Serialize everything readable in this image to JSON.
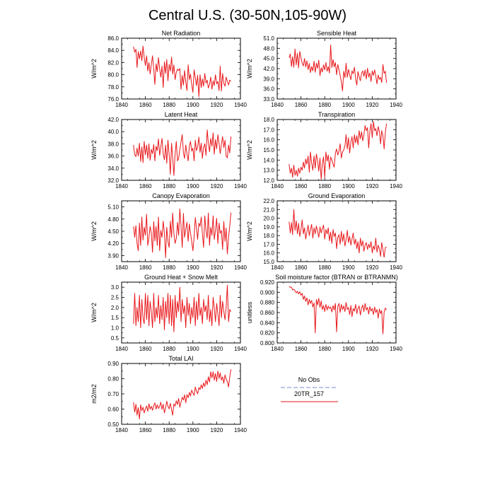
{
  "title": "Central U.S. (30-50N,105-90W)",
  "colors": {
    "model": "#e8171b",
    "obs": "#a8b1e3"
  },
  "legend": [
    {
      "label": "No Obs",
      "color": "#a8b1e3",
      "dashed": true
    },
    {
      "label": "20TR_157",
      "color": "#e8171b",
      "dashed": false
    }
  ],
  "chart_data": [
    {
      "type": "line",
      "title": "Net Radiation",
      "ylabel": "W/m^2",
      "xlim": [
        1840,
        1940
      ],
      "xticks": [
        "1840",
        "1860",
        "1880",
        "1900",
        "1920",
        "1940"
      ],
      "ylim": [
        76.0,
        86.0
      ],
      "yticks": [
        "76.0",
        "78.0",
        "80.0",
        "82.0",
        "84.0",
        "86.0"
      ],
      "x0": 1850,
      "values": [
        84.6,
        83.7,
        84.2,
        81.2,
        83.8,
        82.6,
        83.9,
        82.3,
        84.7,
        82.9,
        81.5,
        83.1,
        80.6,
        82.0,
        80.1,
        81.7,
        83.1,
        80.9,
        78.4,
        81.8,
        80.5,
        82.8,
        80.9,
        79.6,
        81.4,
        77.9,
        82.1,
        80.2,
        82.5,
        79.0,
        81.7,
        80.6,
        82.9,
        80.1,
        81.6,
        79.2,
        80.4,
        80.9,
        80.7,
        81.0,
        77.6,
        79.9,
        78.3,
        80.7,
        78.8,
        77.4,
        81.6,
        79.2,
        80.1,
        78.4,
        77.1,
        80.8,
        79.5,
        78.2,
        79.9,
        76.4,
        80.0,
        77.9,
        79.3,
        78.1,
        80.2,
        78.6,
        79.1,
        77.8,
        78.4,
        79.6,
        77.6,
        79.0,
        78.2,
        80.0,
        78.5,
        78.9,
        77.4,
        81.4,
        77.3,
        80.2,
        78.6,
        78.1,
        79.6,
        78.9,
        78.3,
        79.1,
        78.9
      ]
    },
    {
      "type": "line",
      "title": "Sensible Heat",
      "ylabel": "W/m^2",
      "xlim": [
        1840,
        1940
      ],
      "xticks": [
        "1840",
        "1860",
        "1880",
        "1900",
        "1920",
        "1940"
      ],
      "ylim": [
        33.0,
        51.0
      ],
      "yticks": [
        "33.0",
        "36.0",
        "39.0",
        "42.0",
        "45.0",
        "48.0",
        "51.0"
      ],
      "x0": 1850,
      "values": [
        45.2,
        46.3,
        42.6,
        45.5,
        42.4,
        47.8,
        43.1,
        46.5,
        42.2,
        47.1,
        45.2,
        43.6,
        42.8,
        45.0,
        42.5,
        44.3,
        41.7,
        43.5,
        40.8,
        42.6,
        41.3,
        44.2,
        40.9,
        43.6,
        42.1,
        44.5,
        39.9,
        42.2,
        41.0,
        43.1,
        41.6,
        43.8,
        41.2,
        42.6,
        40.7,
        49.0,
        42.3,
        44.7,
        42.5,
        43.8,
        40.2,
        43.2,
        41.6,
        40.0,
        38.1,
        35.4,
        41.2,
        39.3,
        43.6,
        39.4,
        41.8,
        40.1,
        38.7,
        41.3,
        40.5,
        42.4,
        39.0,
        37.1,
        41.1,
        39.6,
        38.4,
        40.6,
        41.3,
        39.7,
        41.6,
        38.9,
        42.1,
        39.5,
        40.7,
        38.2,
        41.3,
        40.0,
        41.6,
        39.8,
        37.5,
        40.1,
        38.8,
        39.4,
        37.9,
        43.2,
        40.6,
        41.2,
        37.8
      ]
    },
    {
      "type": "line",
      "title": "Latent Heat",
      "ylabel": "W/m^2",
      "xlim": [
        1840,
        1940
      ],
      "xticks": [
        "1840",
        "1860",
        "1880",
        "1900",
        "1920",
        "1940"
      ],
      "ylim": [
        32.0,
        42.0
      ],
      "yticks": [
        "32.0",
        "34.0",
        "36.0",
        "38.0",
        "40.0",
        "42.0"
      ],
      "x0": 1850,
      "values": [
        37.8,
        36.2,
        35.9,
        37.3,
        36.0,
        38.1,
        35.1,
        37.5,
        34.9,
        38.4,
        36.2,
        37.8,
        35.6,
        38.0,
        35.3,
        37.1,
        36.4,
        37.9,
        35.2,
        37.6,
        36.9,
        38.8,
        36.1,
        37.5,
        38.9,
        36.3,
        35.4,
        37.8,
        34.8,
        38.6,
        36.2,
        33.0,
        38.1,
        35.7,
        32.8,
        36.3,
        38.4,
        35.2,
        35.6,
        37.1,
        38.3,
        39.5,
        36.5,
        35.6,
        37.8,
        36.4,
        35.2,
        37.6,
        38.4,
        36.8,
        37.3,
        35.2,
        38.6,
        36.9,
        37.5,
        39.1,
        36.6,
        38.1,
        35.6,
        37.4,
        38.0,
        36.1,
        40.3,
        38.2,
        36.7,
        38.9,
        37.6,
        39.8,
        36.3,
        38.7,
        37.2,
        39.5,
        38.1,
        36.4,
        37.9,
        39.2,
        37.4,
        38.6,
        36.0,
        35.7,
        37.8,
        36.5,
        39.2
      ]
    },
    {
      "type": "line",
      "title": "Transpiration",
      "ylabel": "W/m^2",
      "xlim": [
        1840,
        1940
      ],
      "xticks": [
        "1840",
        "1860",
        "1880",
        "1900",
        "1920",
        "1940"
      ],
      "ylim": [
        12.0,
        18.0
      ],
      "yticks": [
        "12.0",
        "13.0",
        "14.0",
        "15.0",
        "16.0",
        "17.0",
        "18.0"
      ],
      "x0": 1850,
      "values": [
        13.6,
        12.7,
        13.2,
        12.3,
        13.5,
        12.5,
        13.0,
        12.4,
        13.2,
        12.7,
        13.3,
        13.0,
        13.8,
        13.2,
        14.1,
        13.6,
        14.4,
        12.8,
        14.8,
        13.7,
        13.0,
        14.4,
        13.2,
        14.6,
        13.9,
        12.9,
        14.2,
        12.1,
        13.6,
        14.3,
        12.3,
        14.8,
        13.9,
        14.5,
        13.1,
        14.3,
        14.0,
        13.6,
        13.3,
        14.7,
        15.1,
        14.5,
        14.9,
        15.6,
        14.2,
        14.8,
        15.0,
        15.4,
        16.5,
        15.1,
        16.2,
        14.7,
        15.8,
        16.3,
        15.2,
        16.5,
        15.7,
        16.4,
        15.5,
        16.9,
        16.1,
        16.8,
        15.9,
        16.5,
        17.4,
        16.9,
        17.2,
        15.2,
        16.8,
        17.6,
        16.2,
        17.8,
        16.9,
        17.1,
        16.4,
        17.3,
        16.8,
        15.6,
        16.9,
        16.4,
        15.1,
        16.7,
        17.6
      ]
    },
    {
      "type": "line",
      "title": "Canopy Evaporation",
      "ylabel": "W/m^2",
      "xlim": [
        1840,
        1940
      ],
      "xticks": [
        "1840",
        "1860",
        "1880",
        "1900",
        "1920",
        "1940"
      ],
      "ylim": [
        3.75,
        5.25
      ],
      "yticks": [
        "3.90",
        "4.20",
        "4.50",
        "4.80",
        "5.10"
      ],
      "x0": 1850,
      "values": [
        4.62,
        4.35,
        4.64,
        4.2,
        4.02,
        4.7,
        4.15,
        4.85,
        4.28,
        4.6,
        4.4,
        4.92,
        4.15,
        4.34,
        4.62,
        4.45,
        3.98,
        4.74,
        4.26,
        4.62,
        4.15,
        4.85,
        4.02,
        4.52,
        4.35,
        4.75,
        4.45,
        3.85,
        4.6,
        4.25,
        4.1,
        4.75,
        4.35,
        4.95,
        4.45,
        4.2,
        4.32,
        4.72,
        4.4,
        5.05,
        4.62,
        4.1,
        4.94,
        4.35,
        4.55,
        4.72,
        4.25,
        4.68,
        4.46,
        4.25,
        4.02,
        4.35,
        4.84,
        4.58,
        4.3,
        4.7,
        4.62,
        4.85,
        4.45,
        4.1,
        4.88,
        4.52,
        4.33,
        4.95,
        4.15,
        4.6,
        4.4,
        4.88,
        4.3,
        4.52,
        4.82,
        4.2,
        4.7,
        4.45,
        4.52,
        4.05,
        4.74,
        4.25,
        4.58,
        3.94,
        4.35,
        4.62,
        4.96
      ]
    },
    {
      "type": "line",
      "title": "Ground Evaporation",
      "ylabel": "W/m^2",
      "xlim": [
        1840,
        1940
      ],
      "xticks": [
        "1840",
        "1860",
        "1880",
        "1900",
        "1920",
        "1940"
      ],
      "ylim": [
        15.0,
        22.0
      ],
      "yticks": [
        "15.0",
        "16.0",
        "17.0",
        "18.0",
        "19.0",
        "20.0",
        "21.0",
        "22.0"
      ],
      "x0": 1850,
      "values": [
        19.6,
        18.3,
        19.5,
        18.1,
        21.0,
        18.6,
        19.7,
        18.2,
        19.4,
        17.9,
        18.7,
        19.8,
        18.2,
        18.9,
        17.6,
        18.4,
        19.2,
        18.0,
        18.7,
        19.3,
        17.7,
        18.9,
        18.2,
        19.1,
        18.5,
        17.8,
        19.0,
        18.3,
        18.8,
        19.2,
        17.6,
        18.7,
        18.2,
        18.9,
        17.4,
        18.4,
        17.1,
        18.7,
        17.9,
        18.3,
        16.5,
        17.8,
        18.1,
        17.0,
        18.5,
        17.3,
        18.2,
        16.8,
        17.5,
        18.6,
        17.2,
        17.9,
        16.9,
        17.6,
        18.3,
        17.0,
        17.6,
        16.5,
        17.3,
        16.0,
        17.7,
        16.8,
        17.4,
        16.2,
        16.9,
        17.2,
        16.4,
        17.0,
        16.6,
        17.3,
        16.0,
        16.8,
        16.4,
        17.7,
        16.1,
        16.9,
        16.5,
        15.6,
        17.2,
        16.4,
        15.5,
        16.6,
        16.7
      ]
    },
    {
      "type": "line",
      "title": "Ground Heat + Snow Melt",
      "ylabel": "W/m^2",
      "xlim": [
        1840,
        1940
      ],
      "xticks": [
        "1840",
        "1860",
        "1880",
        "1900",
        "1920",
        "1940"
      ],
      "ylim": [
        0.25,
        3.25
      ],
      "yticks": [
        "0.5",
        "1.0",
        "1.5",
        "2.0",
        "2.5",
        "3.0"
      ],
      "x0": 1850,
      "values": [
        1.2,
        2.7,
        1.1,
        2.0,
        1.3,
        2.6,
        1.0,
        2.4,
        1.5,
        1.2,
        2.7,
        1.4,
        2.6,
        1.1,
        2.3,
        1.8,
        1.0,
        2.7,
        1.3,
        2.0,
        1.5,
        2.6,
        1.2,
        2.1,
        1.4,
        2.5,
        0.9,
        2.3,
        1.5,
        2.7,
        1.2,
        2.6,
        1.1,
        2.4,
        0.8,
        2.6,
        1.5,
        2.3,
        1.8,
        3.0,
        1.3,
        2.4,
        1.7,
        2.1,
        1.0,
        2.5,
        1.6,
        2.2,
        1.2,
        2.0,
        1.5,
        2.5,
        1.1,
        2.3,
        1.4,
        2.7,
        1.6,
        2.0,
        1.2,
        2.4,
        1.8,
        2.1,
        1.4,
        2.6,
        1.3,
        1.9,
        1.1,
        2.5,
        2.0,
        1.3,
        2.2,
        1.7,
        1.1,
        2.6,
        1.5,
        2.3,
        1.8,
        1.4,
        2.0,
        3.1,
        1.3,
        1.9,
        1.8
      ]
    },
    {
      "type": "line",
      "title": "Soil moisture factor (BTRAN or BTRANMN)",
      "ylabel": "unitless",
      "xlim": [
        1840,
        1940
      ],
      "xticks": [
        "1840",
        "1860",
        "1880",
        "1900",
        "1920",
        "1940"
      ],
      "ylim": [
        0.8,
        0.92
      ],
      "yticks": [
        "0.800",
        "0.820",
        "0.840",
        "0.860",
        "0.880",
        "0.900",
        "0.920"
      ],
      "x0": 1850,
      "values": [
        0.912,
        0.91,
        0.91,
        0.905,
        0.906,
        0.903,
        0.899,
        0.902,
        0.897,
        0.901,
        0.894,
        0.898,
        0.886,
        0.893,
        0.882,
        0.889,
        0.875,
        0.886,
        0.878,
        0.884,
        0.871,
        0.879,
        0.82,
        0.886,
        0.875,
        0.888,
        0.87,
        0.883,
        0.866,
        0.874,
        0.862,
        0.876,
        0.865,
        0.873,
        0.868,
        0.871,
        0.861,
        0.874,
        0.865,
        0.878,
        0.822,
        0.872,
        0.878,
        0.86,
        0.876,
        0.866,
        0.873,
        0.862,
        0.88,
        0.866,
        0.87,
        0.856,
        0.874,
        0.852,
        0.868,
        0.863,
        0.876,
        0.858,
        0.868,
        0.873,
        0.855,
        0.869,
        0.875,
        0.862,
        0.878,
        0.865,
        0.87,
        0.857,
        0.872,
        0.863,
        0.868,
        0.856,
        0.871,
        0.86,
        0.866,
        0.849,
        0.867,
        0.858,
        0.864,
        0.818,
        0.861,
        0.869,
        0.865
      ]
    },
    {
      "type": "line",
      "title": "Total LAI",
      "ylabel": "m2/m2",
      "xlim": [
        1840,
        1940
      ],
      "xticks": [
        "1840",
        "1860",
        "1880",
        "1900",
        "1920",
        "1940"
      ],
      "ylim": [
        0.5,
        0.9
      ],
      "yticks": [
        "0.50",
        "0.60",
        "0.70",
        "0.80",
        "0.90"
      ],
      "x0": 1850,
      "values": [
        0.645,
        0.58,
        0.632,
        0.56,
        0.61,
        0.535,
        0.628,
        0.59,
        0.612,
        0.575,
        0.601,
        0.62,
        0.585,
        0.635,
        0.6,
        0.618,
        0.592,
        0.624,
        0.641,
        0.6,
        0.629,
        0.604,
        0.619,
        0.645,
        0.598,
        0.632,
        0.575,
        0.61,
        0.652,
        0.618,
        0.602,
        0.638,
        0.596,
        0.56,
        0.634,
        0.62,
        0.655,
        0.63,
        0.67,
        0.612,
        0.646,
        0.678,
        0.66,
        0.694,
        0.642,
        0.695,
        0.675,
        0.71,
        0.686,
        0.725,
        0.705,
        0.69,
        0.745,
        0.718,
        0.7,
        0.742,
        0.728,
        0.76,
        0.735,
        0.772,
        0.748,
        0.79,
        0.76,
        0.812,
        0.778,
        0.845,
        0.805,
        0.845,
        0.79,
        0.834,
        0.782,
        0.85,
        0.802,
        0.838,
        0.79,
        0.812,
        0.77,
        0.825,
        0.797,
        0.782,
        0.745,
        0.812,
        0.862
      ]
    }
  ]
}
